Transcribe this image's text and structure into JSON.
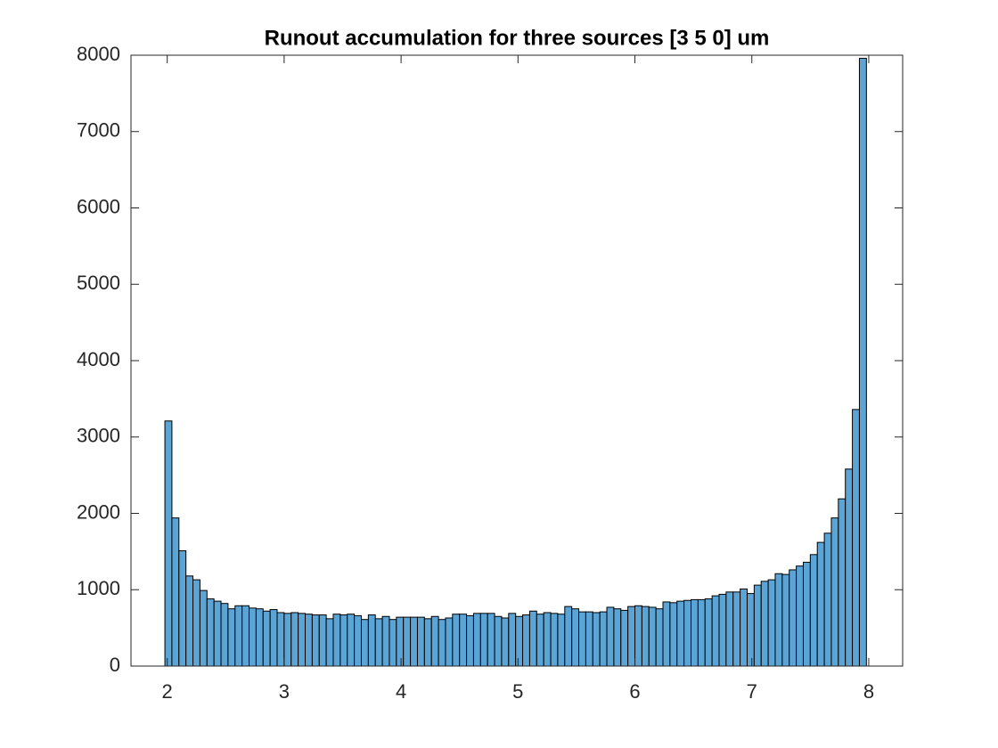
{
  "chart_data": {
    "type": "histogram",
    "title": "Runout accumulation for three sources [3 5 0] um",
    "bins": [
      1.98,
      2.04,
      2.1,
      2.16,
      2.22,
      2.28,
      2.34,
      2.4,
      2.46,
      2.52,
      2.58,
      2.64,
      2.7,
      2.76,
      2.82,
      2.88,
      2.94,
      3.0,
      3.06,
      3.12,
      3.18,
      3.24,
      3.3,
      3.36,
      3.42,
      3.48,
      3.54,
      3.6,
      3.66,
      3.72,
      3.78,
      3.84,
      3.9,
      3.96,
      4.02,
      4.08,
      4.14,
      4.2,
      4.26,
      4.32,
      4.38,
      4.44,
      4.5,
      4.56,
      4.62,
      4.68,
      4.74,
      4.8,
      4.86,
      4.92,
      4.98,
      5.04,
      5.1,
      5.16,
      5.22,
      5.28,
      5.34,
      5.4,
      5.46,
      5.52,
      5.58,
      5.64,
      5.7,
      5.76,
      5.82,
      5.88,
      5.94,
      6.0,
      6.06,
      6.12,
      6.18,
      6.24,
      6.3,
      6.36,
      6.42,
      6.48,
      6.54,
      6.6,
      6.66,
      6.72,
      6.78,
      6.84,
      6.9,
      6.96,
      7.02,
      7.08,
      7.14,
      7.2,
      7.26,
      7.32,
      7.38,
      7.44,
      7.5,
      7.56,
      7.62,
      7.68,
      7.74,
      7.8,
      7.86,
      7.92,
      7.98
    ],
    "values": [
      3210,
      1940,
      1510,
      1180,
      1130,
      990,
      880,
      850,
      820,
      750,
      790,
      790,
      760,
      750,
      720,
      740,
      700,
      690,
      700,
      690,
      680,
      670,
      670,
      620,
      680,
      670,
      680,
      660,
      610,
      670,
      620,
      650,
      610,
      640,
      640,
      640,
      640,
      620,
      650,
      610,
      630,
      680,
      680,
      660,
      690,
      690,
      690,
      650,
      630,
      690,
      650,
      670,
      720,
      680,
      700,
      690,
      680,
      780,
      750,
      710,
      710,
      700,
      710,
      770,
      750,
      730,
      780,
      790,
      780,
      770,
      750,
      840,
      830,
      850,
      860,
      870,
      870,
      880,
      920,
      940,
      970,
      970,
      1010,
      950,
      1060,
      1110,
      1130,
      1210,
      1200,
      1260,
      1310,
      1360,
      1460,
      1620,
      1740,
      1940,
      2190,
      2580,
      3360,
      7960
    ],
    "color": "#5ba4d6",
    "xlim": [
      1.69,
      8.29
    ],
    "xticks": [
      2,
      3,
      4,
      5,
      6,
      7,
      8
    ],
    "ylim": [
      0,
      8000
    ],
    "yticks": [
      0,
      1000,
      2000,
      3000,
      4000,
      5000,
      6000,
      7000,
      8000
    ],
    "grid": false
  }
}
